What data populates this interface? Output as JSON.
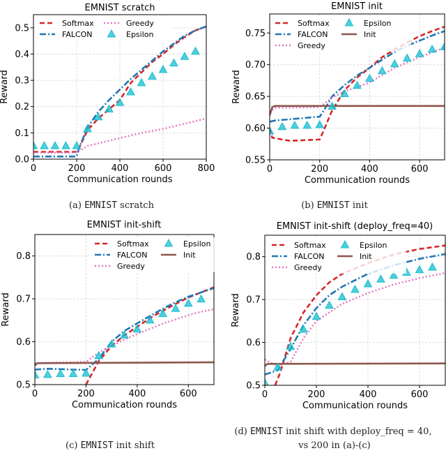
{
  "styles": {
    "Softmax": {
      "color": "#d62728",
      "dash": "7,4",
      "kind": "line"
    },
    "FALCON": {
      "color": "#1f77b4",
      "dash": "9,3,2,3",
      "kind": "line"
    },
    "Greedy": {
      "color": "#e377c2",
      "dash": "2,3",
      "kind": "line"
    },
    "Epsilon": {
      "color": "#17becf",
      "kind": "marker"
    },
    "Init": {
      "color": "#8c564b",
      "dash": "",
      "kind": "line"
    }
  },
  "captions": [
    {
      "pre": "(a) ",
      "mono": "EMNIST",
      "post": " scratch"
    },
    {
      "pre": "(b) ",
      "mono": "EMNIST",
      "post": " init"
    },
    {
      "pre": "(c) ",
      "mono": "EMNIST",
      "post": " init shift"
    },
    {
      "pre": "(d) ",
      "mono": "EMNIST",
      "post": " init shift with deploy_freq = 40,",
      "line2": "vs 200 in (a)-(c)"
    }
  ],
  "chart_data": [
    {
      "type": "line",
      "title": "EMNIST scratch",
      "xlabel": "Communication rounds",
      "ylabel": "Reward",
      "xlim": [
        0,
        800
      ],
      "ylim": [
        0,
        0.55
      ],
      "grid": true,
      "xticks": [
        "0",
        "200",
        "400",
        "600",
        "800"
      ],
      "yticks": [
        "0.0",
        "0.1",
        "0.2",
        "0.3",
        "0.4",
        "0.5"
      ],
      "legend": {
        "placement": "upper-left",
        "entries": [
          "Softmax",
          "FALCON",
          "Greedy",
          "Epsilon"
        ]
      },
      "series": [
        {
          "name": "Softmax",
          "x": [
            0,
            200,
            210,
            250,
            300,
            350,
            400,
            450,
            500,
            550,
            600,
            650,
            700,
            750,
            800
          ],
          "y": [
            0.028,
            0.028,
            0.04,
            0.11,
            0.155,
            0.19,
            0.225,
            0.29,
            0.33,
            0.37,
            0.4,
            0.435,
            0.465,
            0.49,
            0.505
          ]
        },
        {
          "name": "FALCON",
          "x": [
            0,
            200,
            210,
            250,
            300,
            350,
            400,
            450,
            500,
            550,
            600,
            650,
            700,
            750,
            800
          ],
          "y": [
            0.01,
            0.01,
            0.04,
            0.12,
            0.18,
            0.225,
            0.265,
            0.305,
            0.34,
            0.375,
            0.41,
            0.44,
            0.47,
            0.49,
            0.505
          ]
        },
        {
          "name": "Greedy",
          "x": [
            0,
            200,
            250,
            300,
            400,
            500,
            600,
            700,
            800
          ],
          "y": [
            0.025,
            0.025,
            0.05,
            0.06,
            0.08,
            0.1,
            0.115,
            0.135,
            0.155
          ]
        },
        {
          "name": "Epsilon",
          "x": [
            0,
            50,
            100,
            150,
            200,
            250,
            300,
            350,
            400,
            450,
            500,
            550,
            600,
            650,
            700,
            750
          ],
          "y": [
            0.05,
            0.05,
            0.05,
            0.05,
            0.05,
            0.115,
            0.16,
            0.19,
            0.215,
            0.255,
            0.29,
            0.315,
            0.34,
            0.365,
            0.39,
            0.41
          ]
        }
      ]
    },
    {
      "type": "line",
      "title": "EMNIST init",
      "xlabel": "Communication rounds",
      "ylabel": "Reward",
      "xlim": [
        0,
        700
      ],
      "ylim": [
        0.55,
        0.78
      ],
      "grid": true,
      "xticks": [
        "0",
        "200",
        "400",
        "600"
      ],
      "yticks": [
        "0.55",
        "0.60",
        "0.65",
        "0.70",
        "0.75"
      ],
      "legend": {
        "placement": "upper-left",
        "entries": [
          "Softmax",
          "FALCON",
          "Greedy",
          "Epsilon",
          "Init"
        ]
      },
      "series": [
        {
          "name": "Softmax",
          "x": [
            0,
            10,
            50,
            80,
            200,
            220,
            250,
            300,
            350,
            400,
            450,
            500,
            550,
            600,
            650,
            700
          ],
          "y": [
            0.6,
            0.585,
            0.582,
            0.58,
            0.582,
            0.6,
            0.628,
            0.66,
            0.68,
            0.695,
            0.712,
            0.724,
            0.735,
            0.745,
            0.753,
            0.76
          ]
        },
        {
          "name": "FALCON",
          "x": [
            0,
            20,
            200,
            220,
            250,
            300,
            350,
            400,
            450,
            500,
            550,
            600,
            650,
            700
          ],
          "y": [
            0.61,
            0.612,
            0.618,
            0.63,
            0.65,
            0.668,
            0.683,
            0.695,
            0.708,
            0.72,
            0.73,
            0.738,
            0.746,
            0.753
          ]
        },
        {
          "name": "Greedy",
          "x": [
            0,
            20,
            200,
            250,
            300,
            400,
            500,
            600,
            700
          ],
          "y": [
            0.625,
            0.632,
            0.633,
            0.648,
            0.658,
            0.672,
            0.695,
            0.712,
            0.727
          ]
        },
        {
          "name": "Init",
          "x": [
            0,
            10,
            20,
            700
          ],
          "y": [
            0.62,
            0.633,
            0.635,
            0.635
          ]
        },
        {
          "name": "Epsilon",
          "x": [
            0,
            50,
            100,
            150,
            200,
            250,
            300,
            350,
            400,
            450,
            500,
            550,
            600,
            650,
            700
          ],
          "y": [
            0.595,
            0.602,
            0.604,
            0.604,
            0.605,
            0.634,
            0.654,
            0.667,
            0.678,
            0.69,
            0.701,
            0.71,
            0.717,
            0.724,
            0.728
          ]
        }
      ]
    },
    {
      "type": "line",
      "title": "EMNIST init-shift",
      "xlabel": "Communication rounds",
      "ylabel": "Reward",
      "xlim": [
        0,
        700
      ],
      "ylim": [
        0.5,
        0.85
      ],
      "grid": true,
      "xticks": [
        "0",
        "200",
        "400",
        "600"
      ],
      "yticks": [
        "0.5",
        "0.6",
        "0.7",
        "0.8"
      ],
      "legend": {
        "placement": "upper-right",
        "entries": [
          "Softmax",
          "FALCON",
          "Greedy",
          "Epsilon",
          "Init"
        ]
      },
      "series": [
        {
          "name": "Softmax",
          "x": [
            200,
            250,
            300,
            350,
            400,
            450,
            500,
            550,
            600,
            650,
            700
          ],
          "y": [
            0.5,
            0.555,
            0.59,
            0.615,
            0.635,
            0.655,
            0.672,
            0.688,
            0.703,
            0.715,
            0.727
          ]
        },
        {
          "name": "FALCON",
          "x": [
            0,
            50,
            200,
            250,
            300,
            350,
            400,
            450,
            500,
            550,
            600,
            650,
            700
          ],
          "y": [
            0.535,
            0.537,
            0.534,
            0.56,
            0.6,
            0.625,
            0.643,
            0.66,
            0.677,
            0.692,
            0.705,
            0.715,
            0.725
          ]
        },
        {
          "name": "Greedy",
          "x": [
            0,
            200,
            250,
            300,
            350,
            400,
            450,
            500,
            550,
            600,
            650,
            700
          ],
          "y": [
            0.55,
            0.553,
            0.575,
            0.59,
            0.605,
            0.618,
            0.63,
            0.642,
            0.652,
            0.662,
            0.67,
            0.676
          ]
        },
        {
          "name": "Init",
          "x": [
            0,
            10,
            700
          ],
          "y": [
            0.545,
            0.55,
            0.552
          ]
        },
        {
          "name": "Epsilon",
          "x": [
            0,
            50,
            100,
            150,
            200,
            250,
            300,
            350,
            400,
            450,
            500,
            550,
            600,
            650
          ],
          "y": [
            0.522,
            0.523,
            0.525,
            0.525,
            0.526,
            0.567,
            0.594,
            0.615,
            0.629,
            0.65,
            0.665,
            0.677,
            0.689,
            0.699
          ]
        }
      ]
    },
    {
      "type": "line",
      "title": "EMNIST init-shift (deploy_freq=40)",
      "xlabel": "Communication rounds",
      "ylabel": "Reward",
      "xlim": [
        0,
        700
      ],
      "ylim": [
        0.5,
        0.85
      ],
      "grid": true,
      "xticks": [
        "0",
        "200",
        "400",
        "600"
      ],
      "yticks": [
        "0.5",
        "0.6",
        "0.7",
        "0.8"
      ],
      "legend": {
        "placement": "upper-left",
        "entries": [
          "Softmax",
          "FALCON",
          "Greedy",
          "Epsilon",
          "Init"
        ]
      },
      "series": [
        {
          "name": "Softmax",
          "x": [
            40,
            60,
            100,
            150,
            200,
            250,
            300,
            400,
            500,
            600,
            700
          ],
          "y": [
            0.5,
            0.53,
            0.61,
            0.67,
            0.71,
            0.74,
            0.76,
            0.785,
            0.805,
            0.818,
            0.826
          ]
        },
        {
          "name": "FALCON",
          "x": [
            0,
            50,
            100,
            150,
            200,
            250,
            300,
            400,
            500,
            600,
            700
          ],
          "y": [
            0.525,
            0.535,
            0.585,
            0.64,
            0.68,
            0.71,
            0.73,
            0.76,
            0.78,
            0.795,
            0.806
          ]
        },
        {
          "name": "Greedy",
          "x": [
            0,
            50,
            100,
            150,
            200,
            300,
            400,
            500,
            600,
            700
          ],
          "y": [
            0.56,
            0.545,
            0.555,
            0.61,
            0.65,
            0.69,
            0.715,
            0.735,
            0.75,
            0.762
          ]
        },
        {
          "name": "Init",
          "x": [
            0,
            10,
            700
          ],
          "y": [
            0.545,
            0.55,
            0.551
          ]
        },
        {
          "name": "Epsilon",
          "x": [
            0,
            50,
            100,
            150,
            200,
            250,
            300,
            350,
            400,
            450,
            500,
            550,
            600,
            650
          ],
          "y": [
            0.505,
            0.542,
            0.59,
            0.63,
            0.66,
            0.686,
            0.706,
            0.723,
            0.736,
            0.747,
            0.756,
            0.763,
            0.769,
            0.775
          ]
        }
      ]
    }
  ]
}
